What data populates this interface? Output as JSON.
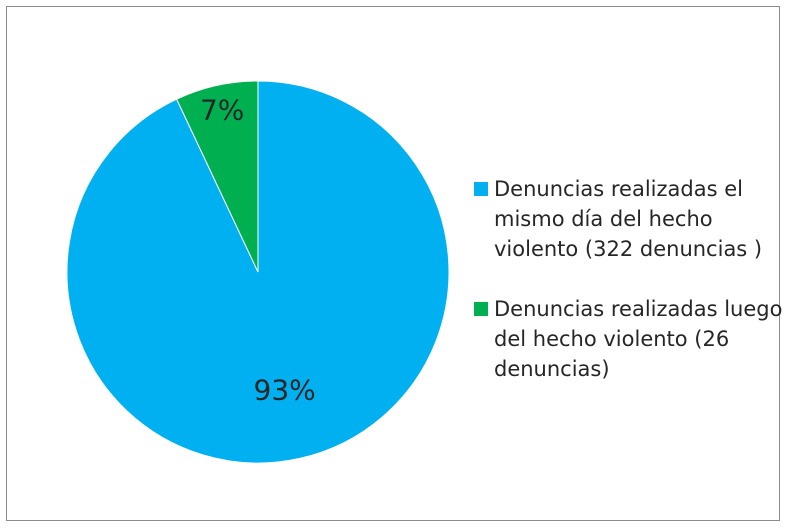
{
  "chart_data": {
    "type": "pie",
    "categories": [
      "Denuncias realizadas el mismo día del hecho violento (322 denuncias )",
      "Denuncias realizadas luego del hecho violento (26 denuncias)"
    ],
    "values": [
      93,
      7
    ],
    "value_labels": [
      "93%",
      "7%"
    ],
    "colors": [
      "#00B0F0",
      "#00B050"
    ],
    "start_angle_deg": 0,
    "direction": "clockwise",
    "legend_position": "right"
  }
}
